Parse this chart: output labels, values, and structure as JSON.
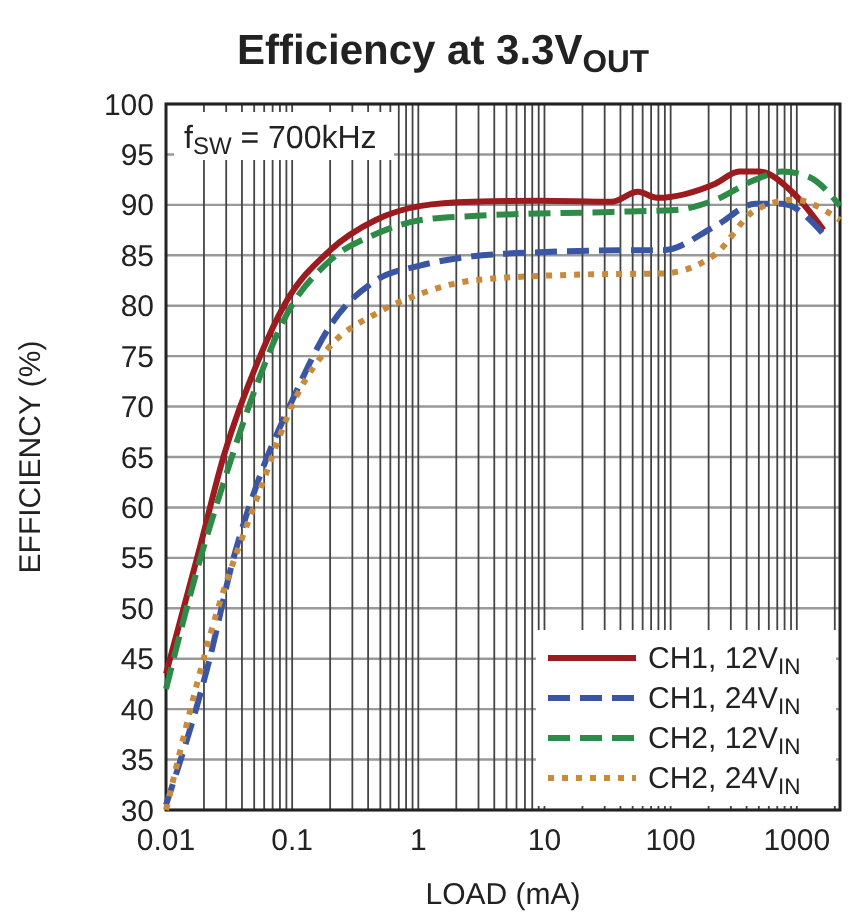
{
  "chart_data": {
    "type": "line",
    "title": "Efficiency at 3.3V$_{OUT}$",
    "xlabel": "LOAD (mA)",
    "ylabel": "EFFICIENCY (%)",
    "log": "x",
    "grid": true,
    "legend": "bottom right",
    "xlim": [
      0.01,
      2200
    ],
    "xticks": [
      0.01,
      0.1,
      1,
      10,
      100,
      1000
    ],
    "ylim": [
      30,
      100
    ],
    "yticks": [
      30,
      35,
      40,
      45,
      50,
      55,
      60,
      65,
      70,
      75,
      80,
      85,
      90,
      95,
      100
    ],
    "annotations": [
      "f$_{SW}$ = 700kHz"
    ],
    "series": [
      {
        "name": "CH1, 12V$_{IN}$",
        "color": "#9b1b1f",
        "line_style": "solid",
        "x": [
          0.01,
          0.018,
          0.029,
          0.054,
          0.086,
          0.2,
          0.46,
          1.05,
          2.7,
          9.1,
          34,
          55,
          78,
          226,
          350,
          500,
          950,
          1630
        ],
        "values": [
          43.5,
          55.4,
          65.3,
          74.6,
          80,
          85.5,
          88.5,
          89.9,
          90.3,
          90.4,
          90.3,
          91.3,
          90.7,
          92.1,
          93.3,
          93.3,
          91.1,
          87.5
        ]
      },
      {
        "name": "CH1, 24V$_{IN}$",
        "color": "#3a55a4",
        "line_style": "dashed",
        "x": [
          0.01,
          0.022,
          0.034,
          0.054,
          0.1,
          0.2,
          0.46,
          1.05,
          2.7,
          9.1,
          55,
          87,
          226,
          470,
          760,
          1630
        ],
        "values": [
          30.5,
          44.8,
          54.8,
          62.7,
          70.6,
          78,
          82.5,
          84,
          84.9,
          85.3,
          85.5,
          85.5,
          87.9,
          90.1,
          90.1,
          87.1
        ]
      },
      {
        "name": "CH2, 12V$_{IN}$",
        "color": "#2e8b47",
        "line_style": "dashed",
        "x": [
          0.01,
          0.018,
          0.029,
          0.054,
          0.086,
          0.2,
          0.46,
          1.05,
          2.7,
          34,
          110,
          226,
          470,
          760,
          1230,
          2200
        ],
        "values": [
          42,
          54.2,
          62.7,
          72.6,
          78.6,
          84.5,
          87.1,
          88.5,
          88.9,
          89.3,
          89.5,
          90.5,
          92.5,
          93.3,
          92.8,
          89.9
        ]
      },
      {
        "name": "CH2, 24V$_{IN}$",
        "color": "#c98a3c",
        "line_style": "dotted",
        "x": [
          0.01,
          0.025,
          0.054,
          0.11,
          0.2,
          0.46,
          1.05,
          2.7,
          21,
          87,
          226,
          470,
          950,
          2200
        ],
        "values": [
          30,
          49.4,
          61.3,
          71.2,
          76,
          79.2,
          81.2,
          82.5,
          83.1,
          83.2,
          85.1,
          89.5,
          90.5,
          88.5
        ]
      }
    ]
  }
}
